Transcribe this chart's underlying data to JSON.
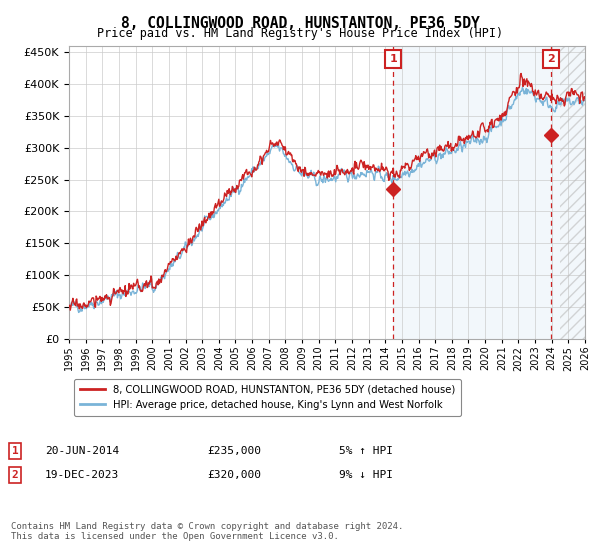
{
  "title": "8, COLLINGWOOD ROAD, HUNSTANTON, PE36 5DY",
  "subtitle": "Price paid vs. HM Land Registry's House Price Index (HPI)",
  "ylim": [
    0,
    460000
  ],
  "yticks": [
    0,
    50000,
    100000,
    150000,
    200000,
    250000,
    300000,
    350000,
    400000,
    450000
  ],
  "xmin_year": 1995,
  "xmax_year": 2026,
  "xtick_years": [
    1995,
    1996,
    1997,
    1998,
    1999,
    2000,
    2001,
    2002,
    2003,
    2004,
    2005,
    2006,
    2007,
    2008,
    2009,
    2010,
    2011,
    2012,
    2013,
    2014,
    2015,
    2016,
    2017,
    2018,
    2019,
    2020,
    2021,
    2022,
    2023,
    2024,
    2025,
    2026
  ],
  "sale1_x": 2014.47,
  "sale1_y": 235000,
  "sale1_label": "1",
  "sale2_x": 2023.96,
  "sale2_y": 320000,
  "sale2_label": "2",
  "hpi_color": "#7ab4d8",
  "price_color": "#cc2222",
  "annotation_box_color": "#cc2222",
  "shading_color": "#daeaf5",
  "legend_line1": "8, COLLINGWOOD ROAD, HUNSTANTON, PE36 5DY (detached house)",
  "legend_line2": "HPI: Average price, detached house, King's Lynn and West Norfolk",
  "note1_label": "1",
  "note1_date": "20-JUN-2014",
  "note1_price": "£235,000",
  "note1_hpi": "5% ↑ HPI",
  "note2_label": "2",
  "note2_date": "19-DEC-2023",
  "note2_price": "£320,000",
  "note2_hpi": "9% ↓ HPI",
  "footer": "Contains HM Land Registry data © Crown copyright and database right 2024.\nThis data is licensed under the Open Government Licence v3.0.",
  "background_color": "#ffffff",
  "grid_color": "#cccccc",
  "hatch_color": "#bbbbbb"
}
